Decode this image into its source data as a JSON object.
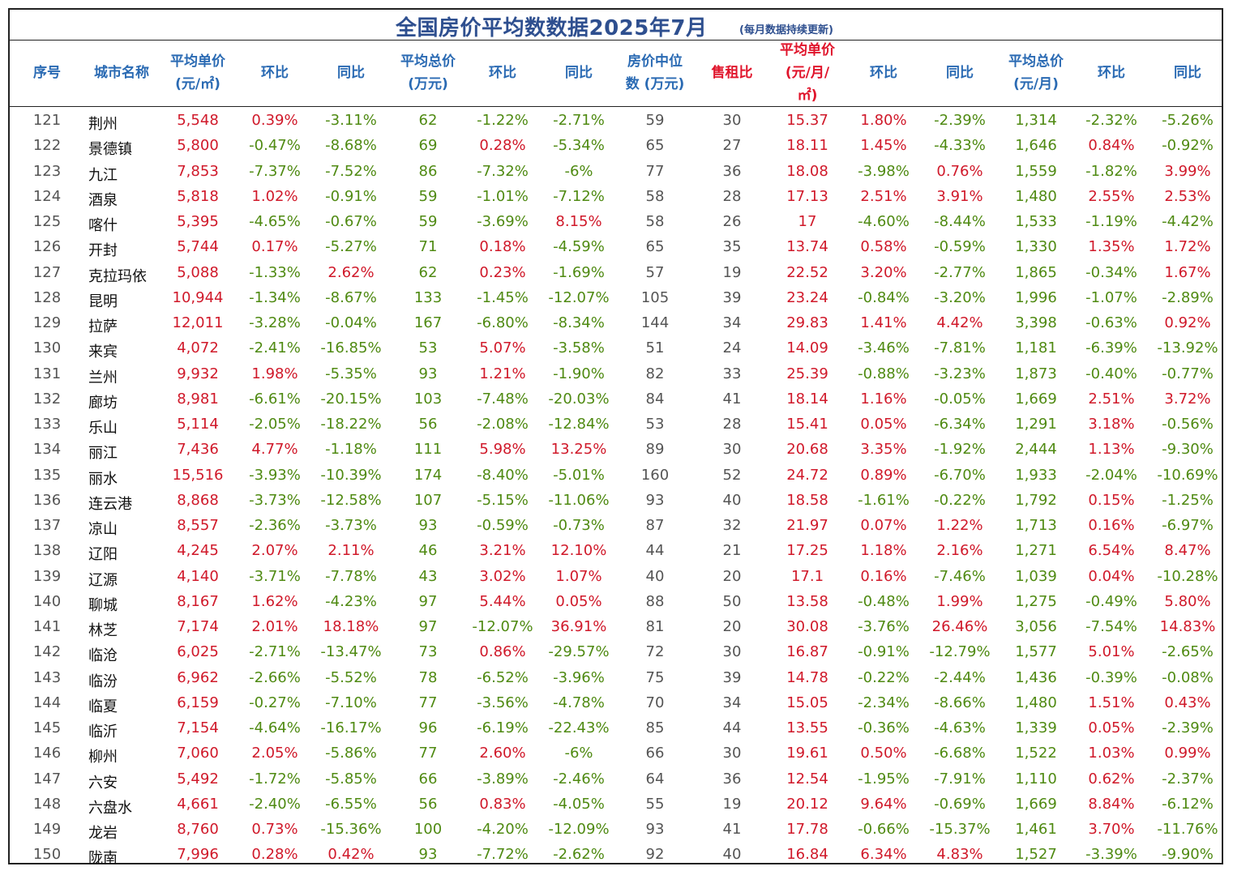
{
  "title": "全国房价平均数数据2025年7月",
  "title_note": "(每月数据持续更新)",
  "headers": [
    "序号",
    "城市名称",
    "平均单价\n(元/㎡)",
    "环比",
    "同比",
    "平均总价\n(万元)",
    "环比",
    "同比",
    "房价中位\n数 (万元)",
    "售租比",
    "平均单价\n(元/月/\n㎡)",
    "环比",
    "同比",
    "平均总价\n(元/月)",
    "环比",
    "同比"
  ],
  "rows": [
    [
      "121",
      "荆州",
      "5,548",
      "0.39%",
      "-3.11%",
      "62",
      "-1.22%",
      "-2.71%",
      "59",
      "30",
      "15.37",
      "1.80%",
      "-2.39%",
      "1,314",
      "-2.32%",
      "-5.26%"
    ],
    [
      "122",
      "景德镇",
      "5,800",
      "-0.47%",
      "-8.68%",
      "69",
      "0.28%",
      "-5.34%",
      "65",
      "27",
      "18.11",
      "1.45%",
      "-4.33%",
      "1,646",
      "0.84%",
      "-0.92%"
    ],
    [
      "123",
      "九江",
      "7,853",
      "-7.37%",
      "-7.52%",
      "86",
      "-7.32%",
      "-6%",
      "77",
      "36",
      "18.08",
      "-3.98%",
      "0.76%",
      "1,559",
      "-1.82%",
      "3.99%"
    ],
    [
      "124",
      "酒泉",
      "5,818",
      "1.02%",
      "-0.91%",
      "59",
      "-1.01%",
      "-7.12%",
      "58",
      "28",
      "17.13",
      "2.51%",
      "3.91%",
      "1,480",
      "2.55%",
      "2.53%"
    ],
    [
      "125",
      "喀什",
      "5,395",
      "-4.65%",
      "-0.67%",
      "59",
      "-3.69%",
      "8.15%",
      "58",
      "26",
      "17",
      "-4.60%",
      "-8.44%",
      "1,533",
      "-1.19%",
      "-4.42%"
    ],
    [
      "126",
      "开封",
      "5,744",
      "0.17%",
      "-5.27%",
      "71",
      "0.18%",
      "-4.59%",
      "65",
      "35",
      "13.74",
      "0.58%",
      "-0.59%",
      "1,330",
      "1.35%",
      "1.72%"
    ],
    [
      "127",
      "克拉玛依",
      "5,088",
      "-1.33%",
      "2.62%",
      "62",
      "0.23%",
      "-1.69%",
      "57",
      "19",
      "22.52",
      "3.20%",
      "-2.77%",
      "1,865",
      "-0.34%",
      "1.67%"
    ],
    [
      "128",
      "昆明",
      "10,944",
      "-1.34%",
      "-8.67%",
      "133",
      "-1.45%",
      "-12.07%",
      "105",
      "39",
      "23.24",
      "-0.84%",
      "-3.20%",
      "1,996",
      "-1.07%",
      "-2.89%"
    ],
    [
      "129",
      "拉萨",
      "12,011",
      "-3.28%",
      "-0.04%",
      "167",
      "-6.80%",
      "-8.34%",
      "144",
      "34",
      "29.83",
      "1.41%",
      "4.42%",
      "3,398",
      "-0.63%",
      "0.92%"
    ],
    [
      "130",
      "来宾",
      "4,072",
      "-2.41%",
      "-16.85%",
      "53",
      "5.07%",
      "-3.58%",
      "51",
      "24",
      "14.09",
      "-3.46%",
      "-7.81%",
      "1,181",
      "-6.39%",
      "-13.92%"
    ],
    [
      "131",
      "兰州",
      "9,932",
      "1.98%",
      "-5.35%",
      "93",
      "1.21%",
      "-1.90%",
      "82",
      "33",
      "25.39",
      "-0.88%",
      "-3.23%",
      "1,873",
      "-0.40%",
      "-0.77%"
    ],
    [
      "132",
      "廊坊",
      "8,981",
      "-6.61%",
      "-20.15%",
      "103",
      "-7.48%",
      "-20.03%",
      "84",
      "41",
      "18.14",
      "1.16%",
      "-0.05%",
      "1,669",
      "2.51%",
      "3.72%"
    ],
    [
      "133",
      "乐山",
      "5,114",
      "-2.05%",
      "-18.22%",
      "56",
      "-2.08%",
      "-12.84%",
      "53",
      "28",
      "15.41",
      "0.05%",
      "-6.34%",
      "1,291",
      "3.18%",
      "-0.56%"
    ],
    [
      "134",
      "丽江",
      "7,436",
      "4.77%",
      "-1.18%",
      "111",
      "5.98%",
      "13.25%",
      "89",
      "30",
      "20.68",
      "3.35%",
      "-1.92%",
      "2,444",
      "1.13%",
      "-9.30%"
    ],
    [
      "135",
      "丽水",
      "15,516",
      "-3.93%",
      "-10.39%",
      "174",
      "-8.40%",
      "-5.01%",
      "160",
      "52",
      "24.72",
      "0.89%",
      "-6.70%",
      "1,933",
      "-2.04%",
      "-10.69%"
    ],
    [
      "136",
      "连云港",
      "8,868",
      "-3.73%",
      "-12.58%",
      "107",
      "-5.15%",
      "-11.06%",
      "93",
      "40",
      "18.58",
      "-1.61%",
      "-0.22%",
      "1,792",
      "0.15%",
      "-1.25%"
    ],
    [
      "137",
      "凉山",
      "8,557",
      "-2.36%",
      "-3.73%",
      "93",
      "-0.59%",
      "-0.73%",
      "87",
      "32",
      "21.97",
      "0.07%",
      "1.22%",
      "1,713",
      "0.16%",
      "-6.97%"
    ],
    [
      "138",
      "辽阳",
      "4,245",
      "2.07%",
      "2.11%",
      "46",
      "3.21%",
      "12.10%",
      "44",
      "21",
      "17.25",
      "1.18%",
      "2.16%",
      "1,271",
      "6.54%",
      "8.47%"
    ],
    [
      "139",
      "辽源",
      "4,140",
      "-3.71%",
      "-7.78%",
      "43",
      "3.02%",
      "1.07%",
      "40",
      "20",
      "17.1",
      "0.16%",
      "-7.46%",
      "1,039",
      "0.04%",
      "-10.28%"
    ],
    [
      "140",
      "聊城",
      "8,167",
      "1.62%",
      "-4.23%",
      "97",
      "5.44%",
      "0.05%",
      "88",
      "50",
      "13.58",
      "-0.48%",
      "1.99%",
      "1,275",
      "-0.49%",
      "5.80%"
    ],
    [
      "141",
      "林芝",
      "7,174",
      "2.01%",
      "18.18%",
      "97",
      "-12.07%",
      "36.91%",
      "81",
      "20",
      "30.08",
      "-3.76%",
      "26.46%",
      "3,056",
      "-7.54%",
      "14.83%"
    ],
    [
      "142",
      "临沧",
      "6,025",
      "-2.71%",
      "-13.47%",
      "73",
      "0.86%",
      "-29.57%",
      "72",
      "30",
      "16.87",
      "-0.91%",
      "-12.79%",
      "1,577",
      "5.01%",
      "-2.65%"
    ],
    [
      "143",
      "临汾",
      "6,962",
      "-2.66%",
      "-5.52%",
      "78",
      "-6.52%",
      "-3.96%",
      "75",
      "39",
      "14.78",
      "-0.22%",
      "-2.44%",
      "1,436",
      "-0.39%",
      "-0.08%"
    ],
    [
      "144",
      "临夏",
      "6,159",
      "-0.27%",
      "-7.10%",
      "77",
      "-3.56%",
      "-4.78%",
      "70",
      "34",
      "15.05",
      "-2.34%",
      "-8.66%",
      "1,480",
      "1.51%",
      "0.43%"
    ],
    [
      "145",
      "临沂",
      "7,154",
      "-4.64%",
      "-16.17%",
      "96",
      "-6.19%",
      "-22.43%",
      "85",
      "44",
      "13.55",
      "-0.36%",
      "-4.63%",
      "1,339",
      "0.05%",
      "-2.39%"
    ],
    [
      "146",
      "柳州",
      "7,060",
      "2.05%",
      "-5.86%",
      "77",
      "2.60%",
      "-6%",
      "66",
      "30",
      "19.61",
      "0.50%",
      "-6.68%",
      "1,522",
      "1.03%",
      "0.99%"
    ],
    [
      "147",
      "六安",
      "5,492",
      "-1.72%",
      "-5.85%",
      "66",
      "-3.89%",
      "-2.46%",
      "64",
      "36",
      "12.54",
      "-1.95%",
      "-7.91%",
      "1,110",
      "0.62%",
      "-2.37%"
    ],
    [
      "148",
      "六盘水",
      "4,661",
      "-2.40%",
      "-6.55%",
      "56",
      "0.83%",
      "-4.05%",
      "55",
      "19",
      "20.12",
      "9.64%",
      "-0.69%",
      "1,669",
      "8.84%",
      "-6.12%"
    ],
    [
      "149",
      "龙岩",
      "8,760",
      "0.73%",
      "-15.36%",
      "100",
      "-4.20%",
      "-12.09%",
      "93",
      "41",
      "17.78",
      "-0.66%",
      "-15.37%",
      "1,461",
      "3.70%",
      "-11.76%"
    ],
    [
      "150",
      "陇南",
      "7,996",
      "0.28%",
      "0.42%",
      "93",
      "-7.72%",
      "-2.62%",
      "92",
      "40",
      "16.84",
      "6.34%",
      "4.83%",
      "1,527",
      "-3.39%",
      "-9.90%"
    ]
  ]
}
